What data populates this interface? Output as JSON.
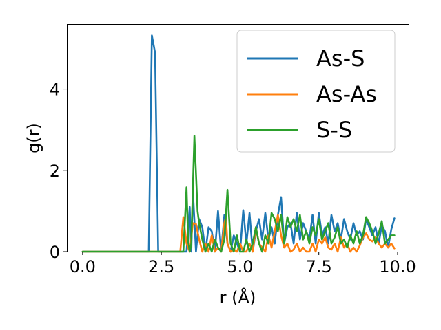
{
  "chart_data": {
    "type": "line",
    "xlabel": "r (Å)",
    "ylabel": "g(r)",
    "xlim": [
      -0.5,
      10.35
    ],
    "ylim": [
      0,
      5.6
    ],
    "xticks": [
      {
        "value": 0.0,
        "label": "0.0"
      },
      {
        "value": 2.5,
        "label": "2.5"
      },
      {
        "value": 5.0,
        "label": "5.0"
      },
      {
        "value": 7.5,
        "label": "7.5"
      },
      {
        "value": 10.0,
        "label": "10.0"
      }
    ],
    "yticks": [
      {
        "value": 0,
        "label": "0"
      },
      {
        "value": 2,
        "label": "2"
      },
      {
        "value": 4,
        "label": "4"
      }
    ],
    "grid": false,
    "legend_position": "upper right",
    "series": [
      {
        "name": "As-S",
        "color": "#1f77b4",
        "points": [
          [
            0.0,
            0.0
          ],
          [
            2.1,
            0.0
          ],
          [
            2.2,
            5.32
          ],
          [
            2.3,
            4.9
          ],
          [
            2.4,
            0.0
          ],
          [
            3.3,
            0.0
          ],
          [
            3.4,
            1.1
          ],
          [
            3.45,
            0.0
          ],
          [
            3.5,
            1.5
          ],
          [
            3.6,
            0.0
          ],
          [
            3.7,
            0.8
          ],
          [
            3.8,
            0.6
          ],
          [
            3.9,
            0.0
          ],
          [
            4.0,
            0.6
          ],
          [
            4.1,
            0.5
          ],
          [
            4.2,
            0.0
          ],
          [
            4.3,
            1.0
          ],
          [
            4.4,
            0.0
          ],
          [
            4.5,
            0.9
          ],
          [
            4.6,
            0.2
          ],
          [
            4.7,
            0.0
          ],
          [
            4.8,
            0.4
          ],
          [
            4.9,
            0.2
          ],
          [
            5.0,
            0.0
          ],
          [
            5.1,
            1.02
          ],
          [
            5.2,
            0.2
          ],
          [
            5.3,
            0.95
          ],
          [
            5.4,
            0.0
          ],
          [
            5.5,
            0.5
          ],
          [
            5.6,
            0.8
          ],
          [
            5.7,
            0.3
          ],
          [
            5.8,
            0.95
          ],
          [
            5.9,
            0.3
          ],
          [
            6.0,
            0.6
          ],
          [
            6.1,
            0.2
          ],
          [
            6.2,
            0.9
          ],
          [
            6.3,
            1.34
          ],
          [
            6.4,
            0.2
          ],
          [
            6.5,
            0.6
          ],
          [
            6.6,
            0.7
          ],
          [
            6.7,
            0.2
          ],
          [
            6.8,
            0.95
          ],
          [
            6.9,
            0.3
          ],
          [
            7.0,
            0.7
          ],
          [
            7.1,
            0.5
          ],
          [
            7.2,
            0.3
          ],
          [
            7.3,
            0.9
          ],
          [
            7.4,
            0.2
          ],
          [
            7.5,
            0.95
          ],
          [
            7.6,
            0.4
          ],
          [
            7.7,
            0.6
          ],
          [
            7.8,
            0.2
          ],
          [
            7.9,
            0.9
          ],
          [
            8.0,
            0.5
          ],
          [
            8.1,
            0.7
          ],
          [
            8.2,
            0.3
          ],
          [
            8.3,
            0.8
          ],
          [
            8.4,
            0.5
          ],
          [
            8.5,
            0.3
          ],
          [
            8.6,
            0.7
          ],
          [
            8.7,
            0.4
          ],
          [
            8.8,
            0.5
          ],
          [
            8.9,
            0.3
          ],
          [
            9.0,
            0.8
          ],
          [
            9.1,
            0.6
          ],
          [
            9.2,
            0.4
          ],
          [
            9.3,
            0.6
          ],
          [
            9.4,
            0.2
          ],
          [
            9.5,
            0.65
          ],
          [
            9.6,
            0.5
          ],
          [
            9.7,
            0.1
          ],
          [
            9.8,
            0.55
          ],
          [
            9.9,
            0.82
          ]
        ]
      },
      {
        "name": "As-As",
        "color": "#ff7f0e",
        "points": [
          [
            0.0,
            0.0
          ],
          [
            3.1,
            0.0
          ],
          [
            3.2,
            0.85
          ],
          [
            3.3,
            0.2
          ],
          [
            3.4,
            0.0
          ],
          [
            3.5,
            0.7
          ],
          [
            3.6,
            0.68
          ],
          [
            3.7,
            0.3
          ],
          [
            3.8,
            0.0
          ],
          [
            3.9,
            0.2
          ],
          [
            4.0,
            0.0
          ],
          [
            4.1,
            0.4
          ],
          [
            4.2,
            0.0
          ],
          [
            4.3,
            0.1
          ],
          [
            4.4,
            0.0
          ],
          [
            4.5,
            0.7
          ],
          [
            4.55,
            0.85
          ],
          [
            4.6,
            0.2
          ],
          [
            4.7,
            0.0
          ],
          [
            4.8,
            0.05
          ],
          [
            4.9,
            0.0
          ],
          [
            5.0,
            0.2
          ],
          [
            5.1,
            0.0
          ],
          [
            5.2,
            0.0
          ],
          [
            5.3,
            0.2
          ],
          [
            5.4,
            0.0
          ],
          [
            5.5,
            0.6
          ],
          [
            5.6,
            0.2
          ],
          [
            5.7,
            0.1
          ],
          [
            5.8,
            0.0
          ],
          [
            5.9,
            0.4
          ],
          [
            6.0,
            0.1
          ],
          [
            6.1,
            0.5
          ],
          [
            6.2,
            0.9
          ],
          [
            6.3,
            0.4
          ],
          [
            6.4,
            0.1
          ],
          [
            6.5,
            0.2
          ],
          [
            6.6,
            0.0
          ],
          [
            6.7,
            0.05
          ],
          [
            6.8,
            0.2
          ],
          [
            6.9,
            0.0
          ],
          [
            7.0,
            0.1
          ],
          [
            7.1,
            0.0
          ],
          [
            7.2,
            0.0
          ],
          [
            7.3,
            0.2
          ],
          [
            7.4,
            0.0
          ],
          [
            7.5,
            0.3
          ],
          [
            7.6,
            0.2
          ],
          [
            7.7,
            0.35
          ],
          [
            7.8,
            0.1
          ],
          [
            7.9,
            0.05
          ],
          [
            8.0,
            0.2
          ],
          [
            8.1,
            0.0
          ],
          [
            8.2,
            0.35
          ],
          [
            8.3,
            0.1
          ],
          [
            8.4,
            0.2
          ],
          [
            8.5,
            0.0
          ],
          [
            8.6,
            0.1
          ],
          [
            8.7,
            0.0
          ],
          [
            8.8,
            0.15
          ],
          [
            8.9,
            0.35
          ],
          [
            9.0,
            0.45
          ],
          [
            9.1,
            0.3
          ],
          [
            9.2,
            0.25
          ],
          [
            9.3,
            0.35
          ],
          [
            9.4,
            0.2
          ],
          [
            9.5,
            0.1
          ],
          [
            9.6,
            0.2
          ],
          [
            9.7,
            0.1
          ],
          [
            9.8,
            0.2
          ],
          [
            9.9,
            0.08
          ]
        ]
      },
      {
        "name": "S-S",
        "color": "#2ca02c",
        "points": [
          [
            0.0,
            0.0
          ],
          [
            3.2,
            0.0
          ],
          [
            3.3,
            1.58
          ],
          [
            3.35,
            0.3
          ],
          [
            3.4,
            0.0
          ],
          [
            3.45,
            0.2
          ],
          [
            3.55,
            2.85
          ],
          [
            3.65,
            1.0
          ],
          [
            3.7,
            0.7
          ],
          [
            3.8,
            0.3
          ],
          [
            3.9,
            0.0
          ],
          [
            4.0,
            0.2
          ],
          [
            4.1,
            0.0
          ],
          [
            4.2,
            0.3
          ],
          [
            4.3,
            0.1
          ],
          [
            4.4,
            0.0
          ],
          [
            4.5,
            0.3
          ],
          [
            4.6,
            1.52
          ],
          [
            4.7,
            0.2
          ],
          [
            4.8,
            0.0
          ],
          [
            4.9,
            0.4
          ],
          [
            5.0,
            0.0
          ],
          [
            5.1,
            0.0
          ],
          [
            5.2,
            0.3
          ],
          [
            5.3,
            0.0
          ],
          [
            5.4,
            0.2
          ],
          [
            5.5,
            0.6
          ],
          [
            5.6,
            0.2
          ],
          [
            5.7,
            0.0
          ],
          [
            5.8,
            0.4
          ],
          [
            5.9,
            0.2
          ],
          [
            6.0,
            0.95
          ],
          [
            6.1,
            0.8
          ],
          [
            6.2,
            0.5
          ],
          [
            6.3,
            0.9
          ],
          [
            6.4,
            0.2
          ],
          [
            6.5,
            0.85
          ],
          [
            6.6,
            0.6
          ],
          [
            6.7,
            0.8
          ],
          [
            6.8,
            0.5
          ],
          [
            6.9,
            0.9
          ],
          [
            7.0,
            0.3
          ],
          [
            7.1,
            0.5
          ],
          [
            7.2,
            0.2
          ],
          [
            7.3,
            0.6
          ],
          [
            7.4,
            0.4
          ],
          [
            7.5,
            0.8
          ],
          [
            7.6,
            0.3
          ],
          [
            7.7,
            0.5
          ],
          [
            7.8,
            0.7
          ],
          [
            7.9,
            0.2
          ],
          [
            8.0,
            0.35
          ],
          [
            8.1,
            0.6
          ],
          [
            8.2,
            0.2
          ],
          [
            8.3,
            0.3
          ],
          [
            8.4,
            0.1
          ],
          [
            8.5,
            0.4
          ],
          [
            8.6,
            0.2
          ],
          [
            8.7,
            0.5
          ],
          [
            8.8,
            0.2
          ],
          [
            8.9,
            0.4
          ],
          [
            9.0,
            0.85
          ],
          [
            9.1,
            0.7
          ],
          [
            9.2,
            0.5
          ],
          [
            9.3,
            0.2
          ],
          [
            9.4,
            0.45
          ],
          [
            9.5,
            0.75
          ],
          [
            9.6,
            0.2
          ],
          [
            9.7,
            0.3
          ],
          [
            9.8,
            0.4
          ],
          [
            9.9,
            0.4
          ]
        ]
      }
    ]
  }
}
